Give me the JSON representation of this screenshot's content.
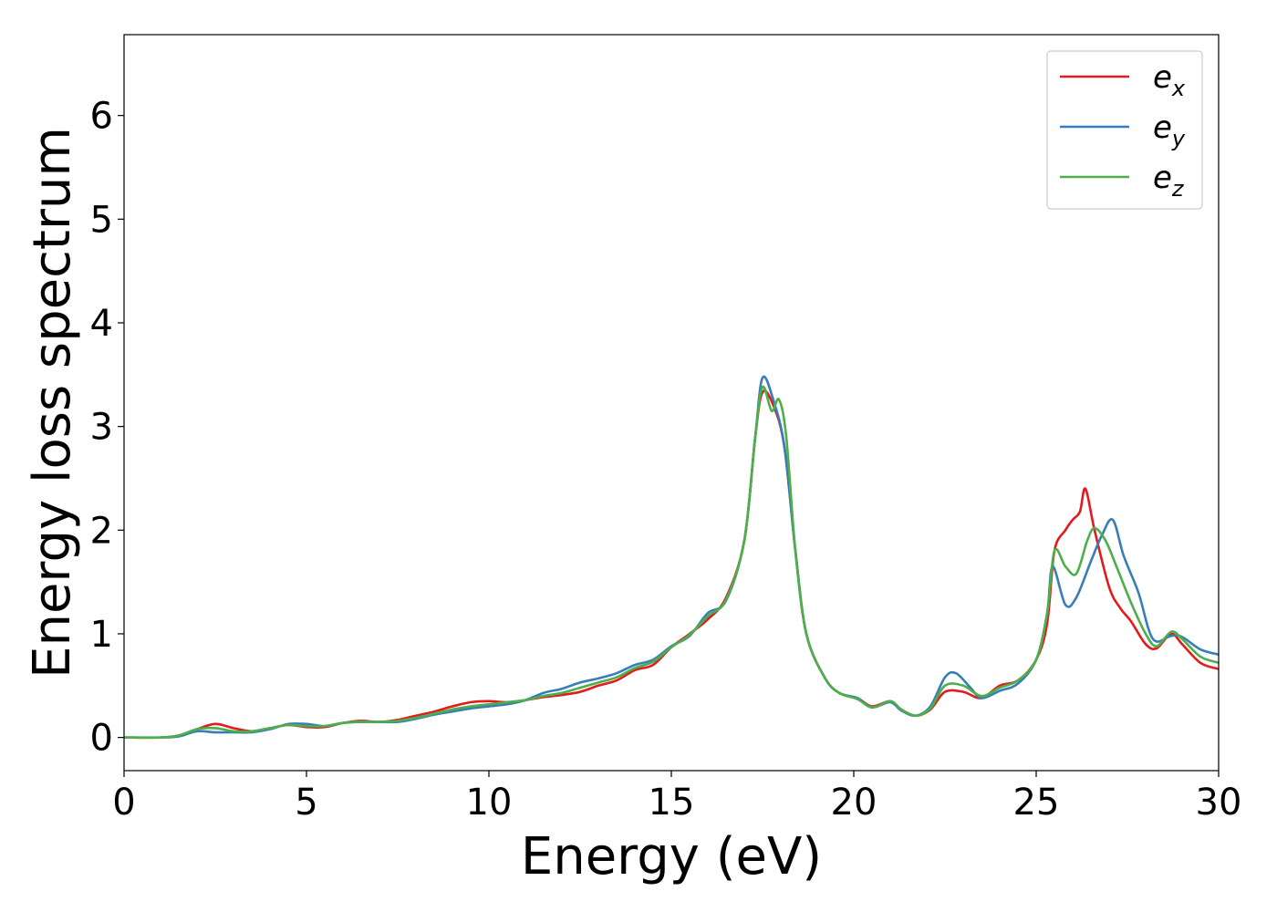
{
  "chart_data": {
    "type": "line",
    "xlabel": "Energy (eV)",
    "ylabel": "Energy loss spectrum",
    "xlim": [
      0,
      30
    ],
    "ylim": [
      -0.32,
      6.78
    ],
    "xticks": [
      "0",
      "5",
      "10",
      "15",
      "20",
      "25",
      "30"
    ],
    "yticks": [
      "0",
      "1",
      "2",
      "3",
      "4",
      "5",
      "6"
    ],
    "grid": false,
    "legend_position": "top-right",
    "series": [
      {
        "name": "e_x",
        "name_base": "e",
        "name_sub": "x",
        "color": "#e41a1c",
        "points": [
          [
            0,
            0
          ],
          [
            1,
            0
          ],
          [
            1.5,
            0.02
          ],
          [
            2,
            0.08
          ],
          [
            2.5,
            0.13
          ],
          [
            3,
            0.09
          ],
          [
            3.5,
            0.06
          ],
          [
            4,
            0.09
          ],
          [
            4.5,
            0.12
          ],
          [
            5,
            0.1
          ],
          [
            5.5,
            0.1
          ],
          [
            6,
            0.14
          ],
          [
            6.5,
            0.16
          ],
          [
            7,
            0.15
          ],
          [
            7.5,
            0.17
          ],
          [
            8,
            0.21
          ],
          [
            8.5,
            0.25
          ],
          [
            9,
            0.3
          ],
          [
            9.5,
            0.34
          ],
          [
            10,
            0.35
          ],
          [
            10.5,
            0.34
          ],
          [
            11,
            0.36
          ],
          [
            11.5,
            0.39
          ],
          [
            12,
            0.41
          ],
          [
            12.5,
            0.44
          ],
          [
            13,
            0.5
          ],
          [
            13.5,
            0.55
          ],
          [
            14,
            0.65
          ],
          [
            14.5,
            0.7
          ],
          [
            15,
            0.87
          ],
          [
            15.5,
            1.0
          ],
          [
            16,
            1.14
          ],
          [
            16.5,
            1.35
          ],
          [
            17,
            1.9
          ],
          [
            17.3,
            2.9
          ],
          [
            17.5,
            3.33
          ],
          [
            17.8,
            3.2
          ],
          [
            18.1,
            2.8
          ],
          [
            18.4,
            1.8
          ],
          [
            18.7,
            1.0
          ],
          [
            19.2,
            0.58
          ],
          [
            19.6,
            0.43
          ],
          [
            20.1,
            0.38
          ],
          [
            20.5,
            0.3
          ],
          [
            21,
            0.35
          ],
          [
            21.3,
            0.27
          ],
          [
            21.7,
            0.21
          ],
          [
            22.1,
            0.27
          ],
          [
            22.5,
            0.44
          ],
          [
            23,
            0.44
          ],
          [
            23.5,
            0.38
          ],
          [
            24,
            0.5
          ],
          [
            24.5,
            0.55
          ],
          [
            25,
            0.75
          ],
          [
            25.3,
            1.1
          ],
          [
            25.5,
            1.8
          ],
          [
            25.8,
            2.0
          ],
          [
            26,
            2.1
          ],
          [
            26.2,
            2.18
          ],
          [
            26.35,
            2.4
          ],
          [
            26.6,
            2.0
          ],
          [
            27,
            1.45
          ],
          [
            27.3,
            1.25
          ],
          [
            27.6,
            1.12
          ],
          [
            28,
            0.9
          ],
          [
            28.3,
            0.86
          ],
          [
            28.7,
            1.0
          ],
          [
            29,
            0.9
          ],
          [
            29.5,
            0.72
          ],
          [
            30,
            0.66
          ]
        ]
      },
      {
        "name": "e_y",
        "name_base": "e",
        "name_sub": "y",
        "color": "#377eb8",
        "points": [
          [
            0,
            0
          ],
          [
            1,
            0
          ],
          [
            1.5,
            0.01
          ],
          [
            2,
            0.06
          ],
          [
            2.5,
            0.05
          ],
          [
            3,
            0.05
          ],
          [
            3.5,
            0.05
          ],
          [
            4,
            0.08
          ],
          [
            4.5,
            0.13
          ],
          [
            5,
            0.13
          ],
          [
            5.5,
            0.11
          ],
          [
            6,
            0.14
          ],
          [
            6.5,
            0.15
          ],
          [
            7,
            0.15
          ],
          [
            7.5,
            0.15
          ],
          [
            8,
            0.18
          ],
          [
            8.5,
            0.22
          ],
          [
            9,
            0.25
          ],
          [
            9.5,
            0.28
          ],
          [
            10,
            0.3
          ],
          [
            10.5,
            0.32
          ],
          [
            11,
            0.36
          ],
          [
            11.5,
            0.43
          ],
          [
            12,
            0.47
          ],
          [
            12.5,
            0.53
          ],
          [
            13,
            0.57
          ],
          [
            13.5,
            0.62
          ],
          [
            14,
            0.7
          ],
          [
            14.5,
            0.75
          ],
          [
            15,
            0.88
          ],
          [
            15.5,
            0.98
          ],
          [
            16,
            1.2
          ],
          [
            16.5,
            1.32
          ],
          [
            17,
            1.9
          ],
          [
            17.3,
            2.9
          ],
          [
            17.5,
            3.47
          ],
          [
            17.8,
            3.25
          ],
          [
            18.1,
            2.8
          ],
          [
            18.4,
            1.8
          ],
          [
            18.7,
            1.0
          ],
          [
            19.2,
            0.58
          ],
          [
            19.6,
            0.43
          ],
          [
            20.1,
            0.38
          ],
          [
            20.5,
            0.29
          ],
          [
            21,
            0.34
          ],
          [
            21.3,
            0.26
          ],
          [
            21.7,
            0.21
          ],
          [
            22.1,
            0.3
          ],
          [
            22.5,
            0.58
          ],
          [
            22.8,
            0.62
          ],
          [
            23.2,
            0.48
          ],
          [
            23.5,
            0.38
          ],
          [
            24,
            0.45
          ],
          [
            24.5,
            0.52
          ],
          [
            25,
            0.75
          ],
          [
            25.3,
            1.2
          ],
          [
            25.45,
            1.65
          ],
          [
            25.8,
            1.28
          ],
          [
            26.1,
            1.35
          ],
          [
            26.5,
            1.7
          ],
          [
            26.8,
            1.95
          ],
          [
            27.1,
            2.1
          ],
          [
            27.4,
            1.75
          ],
          [
            27.8,
            1.4
          ],
          [
            28.2,
            0.95
          ],
          [
            28.7,
            0.98
          ],
          [
            29,
            0.97
          ],
          [
            29.5,
            0.85
          ],
          [
            30,
            0.8
          ]
        ]
      },
      {
        "name": "e_z",
        "name_base": "e",
        "name_sub": "z",
        "color": "#4daf4a",
        "points": [
          [
            0,
            0
          ],
          [
            1,
            0
          ],
          [
            1.5,
            0.02
          ],
          [
            2,
            0.08
          ],
          [
            2.5,
            0.09
          ],
          [
            3,
            0.06
          ],
          [
            3.5,
            0.06
          ],
          [
            4,
            0.09
          ],
          [
            4.5,
            0.12
          ],
          [
            5,
            0.11
          ],
          [
            5.5,
            0.11
          ],
          [
            6,
            0.14
          ],
          [
            6.5,
            0.15
          ],
          [
            7,
            0.15
          ],
          [
            7.5,
            0.16
          ],
          [
            8,
            0.19
          ],
          [
            8.5,
            0.23
          ],
          [
            9,
            0.27
          ],
          [
            9.5,
            0.3
          ],
          [
            10,
            0.32
          ],
          [
            10.5,
            0.34
          ],
          [
            11,
            0.36
          ],
          [
            11.5,
            0.4
          ],
          [
            12,
            0.43
          ],
          [
            12.5,
            0.48
          ],
          [
            13,
            0.53
          ],
          [
            13.5,
            0.58
          ],
          [
            14,
            0.67
          ],
          [
            14.5,
            0.73
          ],
          [
            15,
            0.87
          ],
          [
            15.5,
            0.99
          ],
          [
            16,
            1.17
          ],
          [
            16.5,
            1.33
          ],
          [
            17,
            1.9
          ],
          [
            17.3,
            2.9
          ],
          [
            17.5,
            3.38
          ],
          [
            17.75,
            3.15
          ],
          [
            17.95,
            3.26
          ],
          [
            18.15,
            2.9
          ],
          [
            18.4,
            1.8
          ],
          [
            18.7,
            1.0
          ],
          [
            19.2,
            0.58
          ],
          [
            19.6,
            0.43
          ],
          [
            20.1,
            0.37
          ],
          [
            20.5,
            0.29
          ],
          [
            21,
            0.35
          ],
          [
            21.3,
            0.27
          ],
          [
            21.7,
            0.21
          ],
          [
            22.1,
            0.28
          ],
          [
            22.5,
            0.5
          ],
          [
            23,
            0.5
          ],
          [
            23.5,
            0.4
          ],
          [
            24,
            0.48
          ],
          [
            24.5,
            0.55
          ],
          [
            25,
            0.75
          ],
          [
            25.3,
            1.2
          ],
          [
            25.5,
            1.8
          ],
          [
            25.8,
            1.65
          ],
          [
            26.1,
            1.58
          ],
          [
            26.4,
            1.9
          ],
          [
            26.6,
            2.02
          ],
          [
            26.9,
            1.9
          ],
          [
            27.2,
            1.65
          ],
          [
            27.6,
            1.3
          ],
          [
            28,
            1.0
          ],
          [
            28.3,
            0.88
          ],
          [
            28.7,
            1.02
          ],
          [
            29,
            0.95
          ],
          [
            29.5,
            0.78
          ],
          [
            30,
            0.72
          ]
        ]
      }
    ]
  }
}
